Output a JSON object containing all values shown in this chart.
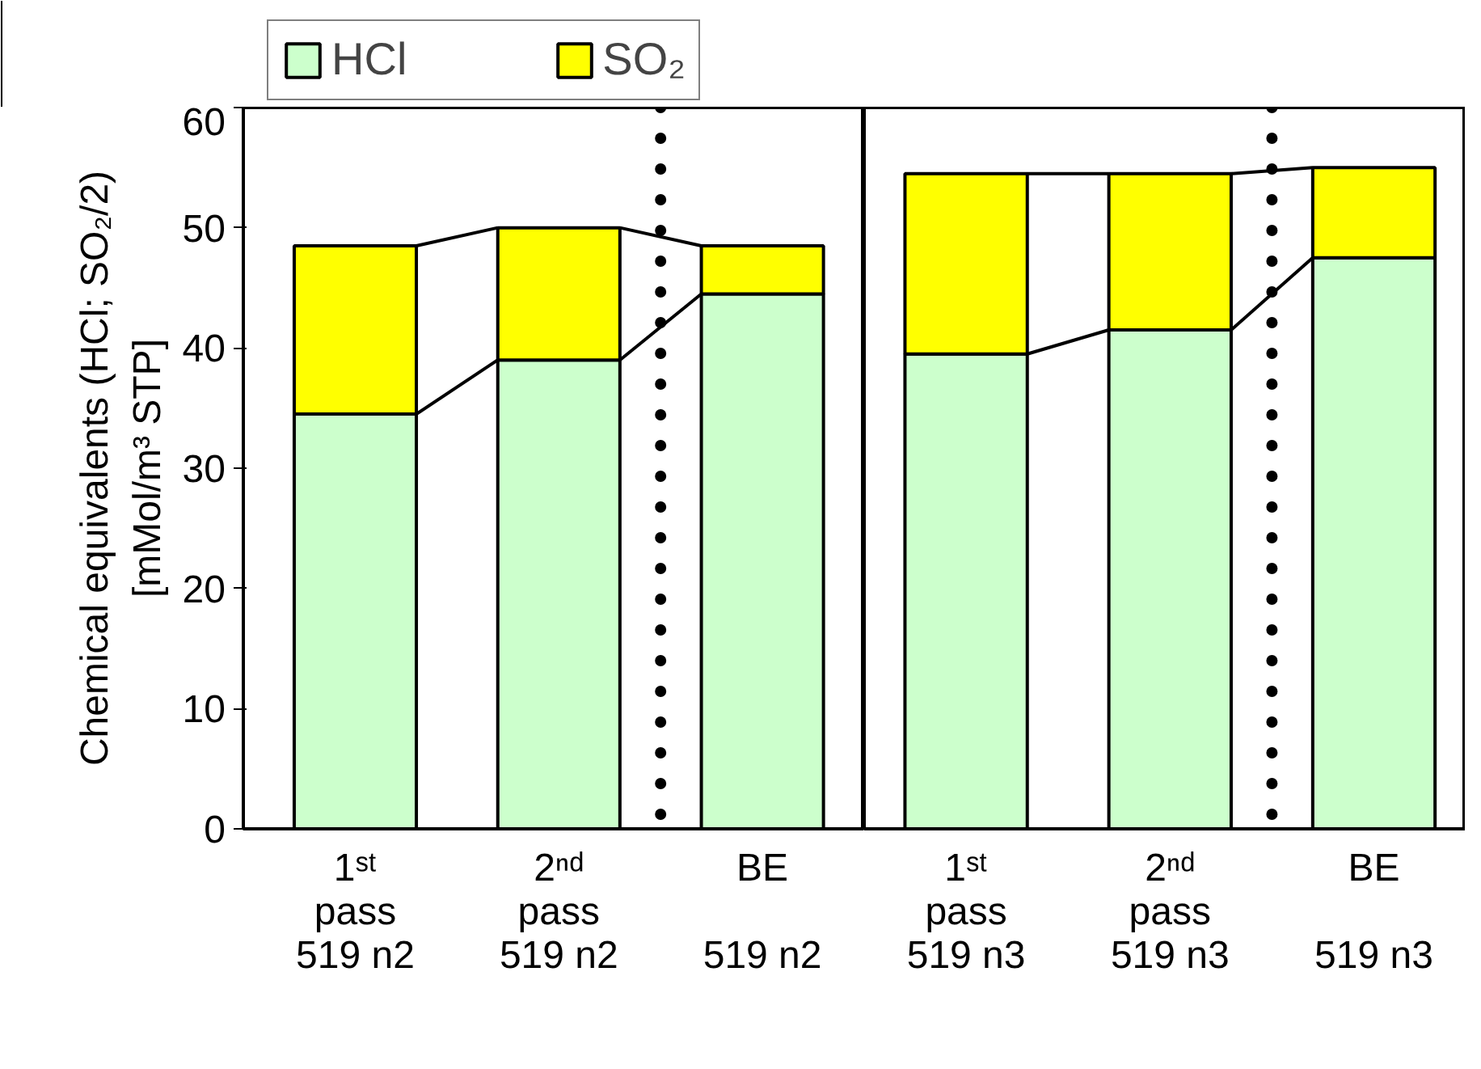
{
  "chart_data": [
    {
      "type": "bar",
      "stacked": true,
      "categories": [
        "1ˢᵗ\npass\n519 n2",
        "2ⁿᵈ\npass\n519 n2",
        "BE\n\n519 n2"
      ],
      "series": [
        {
          "name": "HCl",
          "color": "#ccffcc",
          "values": [
            34.5,
            39,
            44.5
          ]
        },
        {
          "name": "SO₂",
          "color": "#ffff00",
          "values": [
            14,
            11,
            4
          ]
        }
      ],
      "ylabel": "Chemical equivalents (HCl; SO₂/2)\n[mMol/m³ STP]",
      "ylim": [
        0,
        60
      ],
      "yticks": [
        0,
        10,
        20,
        30,
        40,
        50,
        60
      ],
      "grid": false,
      "legend": "top"
    },
    {
      "type": "bar",
      "stacked": true,
      "categories": [
        "1ˢᵗ\npass\n519 n3",
        "2ⁿᵈ\npass\n519 n3",
        "BE\n\n519 n3"
      ],
      "series": [
        {
          "color": "#ccffcc",
          "values": [
            39.5,
            41.5,
            47.5
          ]
        },
        {
          "color": "#ffff00",
          "values": [
            15,
            13,
            7.5
          ]
        }
      ],
      "ylim": [
        0,
        60
      ],
      "yticks": [
        0,
        10,
        20,
        30,
        40,
        50,
        60
      ],
      "grid": false,
      "tick_labels": "x"
    }
  ]
}
